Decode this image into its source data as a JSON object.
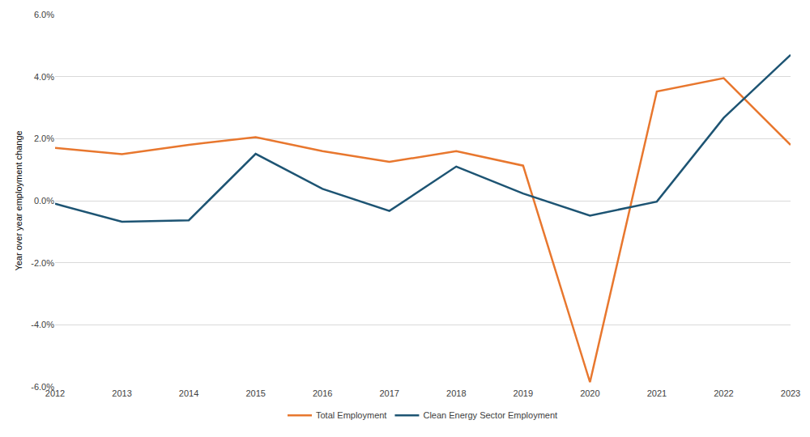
{
  "chart_data": {
    "type": "line",
    "y_label": "Year over year employment change",
    "categories": [
      "2012",
      "2013",
      "2014",
      "2015",
      "2016",
      "2017",
      "2018",
      "2019",
      "2020",
      "2021",
      "2022",
      "2023"
    ],
    "series": [
      {
        "name": "Total Employment",
        "color": "#e8772e",
        "values": [
          1.7,
          1.5,
          1.8,
          2.05,
          1.6,
          1.25,
          1.6,
          1.13,
          -5.85,
          3.52,
          3.95,
          1.8
        ]
      },
      {
        "name": "Clean Energy Sector Employment",
        "color": "#1d5473",
        "values": [
          -0.1,
          -0.68,
          -0.63,
          1.51,
          0.38,
          -0.33,
          1.1,
          0.23,
          -0.48,
          -0.03,
          2.67,
          4.7
        ]
      }
    ],
    "ylim": [
      -6,
      6
    ],
    "yticks": [
      {
        "value": -6,
        "label": "-6.0%"
      },
      {
        "value": -4,
        "label": "-4.0%"
      },
      {
        "value": -2,
        "label": "-2.0%"
      },
      {
        "value": 0,
        "label": "0.0%"
      },
      {
        "value": 2,
        "label": "2.0%"
      },
      {
        "value": 4,
        "label": "4.0%"
      },
      {
        "value": 6,
        "label": "6.0%"
      }
    ],
    "grid": true,
    "legend": "bottom"
  }
}
